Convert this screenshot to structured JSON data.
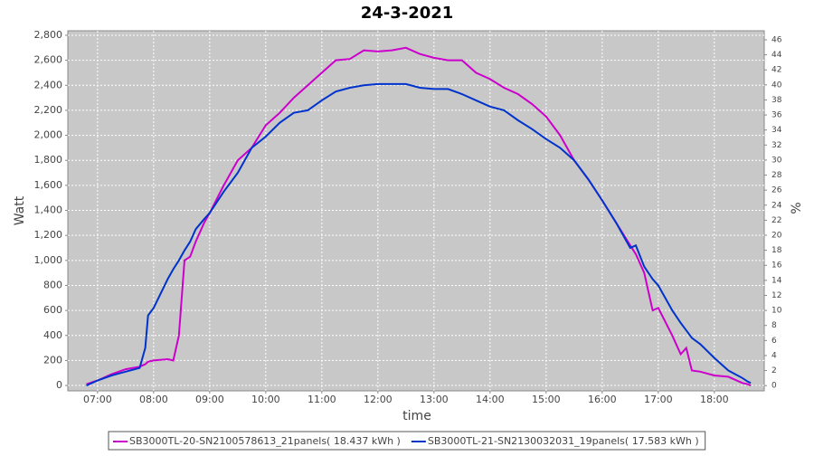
{
  "chart_data": {
    "type": "line",
    "title": "24-3-2021",
    "x_label": "time",
    "y_label": "Watt",
    "y2_label": "%",
    "x": [
      6.8,
      7.0,
      7.25,
      7.5,
      7.75,
      7.85,
      7.9,
      8.0,
      8.25,
      8.35,
      8.45,
      8.55,
      8.65,
      8.75,
      8.9,
      9.0,
      9.25,
      9.5,
      9.75,
      10.0,
      10.25,
      10.5,
      10.75,
      11.0,
      11.25,
      11.5,
      11.75,
      12.0,
      12.25,
      12.5,
      12.75,
      13.0,
      13.25,
      13.5,
      13.75,
      14.0,
      14.25,
      14.5,
      14.75,
      15.0,
      15.25,
      15.5,
      15.75,
      16.0,
      16.25,
      16.5,
      16.6,
      16.75,
      16.9,
      17.0,
      17.25,
      17.4,
      17.5,
      17.6,
      17.75,
      18.0,
      18.25,
      18.5,
      18.6,
      18.65
    ],
    "series": [
      {
        "name": "SB3000TL-20-SN2100578613_21panels( 18.437 kWh )",
        "color": "#cc00cc",
        "values": [
          10,
          40,
          90,
          130,
          150,
          170,
          190,
          200,
          210,
          200,
          400,
          1000,
          1030,
          1150,
          1300,
          1380,
          1600,
          1800,
          1900,
          2080,
          2180,
          2300,
          2400,
          2500,
          2600,
          2610,
          2680,
          2670,
          2680,
          2700,
          2650,
          2620,
          2600,
          2600,
          2500,
          2450,
          2380,
          2330,
          2250,
          2150,
          2000,
          1800,
          1650,
          1480,
          1300,
          1120,
          1050,
          900,
          600,
          620,
          400,
          250,
          300,
          120,
          110,
          80,
          70,
          20,
          10,
          0
        ]
      },
      {
        "name": "SB3000TL-21-SN2130032031_19panels( 17.583 kWh )",
        "color": "#0033cc",
        "values": [
          0,
          40,
          80,
          110,
          140,
          300,
          560,
          620,
          850,
          930,
          1000,
          1080,
          1150,
          1250,
          1330,
          1380,
          1550,
          1700,
          1900,
          1990,
          2100,
          2180,
          2200,
          2280,
          2350,
          2380,
          2400,
          2410,
          2410,
          2410,
          2380,
          2370,
          2370,
          2330,
          2280,
          2230,
          2200,
          2120,
          2050,
          1970,
          1900,
          1800,
          1650,
          1480,
          1300,
          1100,
          1120,
          950,
          850,
          800,
          600,
          500,
          440,
          380,
          330,
          220,
          120,
          60,
          30,
          20
        ]
      }
    ],
    "xlim": [
      6.47,
      18.89
    ],
    "xticks": [
      {
        "value": 7,
        "label": "07:00"
      },
      {
        "value": 8,
        "label": "08:00"
      },
      {
        "value": 9,
        "label": "09:00"
      },
      {
        "value": 10,
        "label": "10:00"
      },
      {
        "value": 11,
        "label": "11:00"
      },
      {
        "value": 12,
        "label": "12:00"
      },
      {
        "value": 13,
        "label": "13:00"
      },
      {
        "value": 14,
        "label": "14:00"
      },
      {
        "value": 15,
        "label": "15:00"
      },
      {
        "value": 16,
        "label": "16:00"
      },
      {
        "value": 17,
        "label": "17:00"
      },
      {
        "value": 18,
        "label": "18:00"
      }
    ],
    "ylim": [
      -43,
      2836
    ],
    "yticks": [
      0,
      200,
      400,
      600,
      800,
      {
        "value": 1000,
        "label": "1,000"
      },
      {
        "value": 1200,
        "label": "1,200"
      },
      {
        "value": 1400,
        "label": "1,400"
      },
      {
        "value": 1600,
        "label": "1,600"
      },
      {
        "value": 1800,
        "label": "1,800"
      },
      {
        "value": 2000,
        "label": "2,000"
      },
      {
        "value": 2200,
        "label": "2,200"
      },
      {
        "value": 2400,
        "label": "2,400"
      },
      {
        "value": 2600,
        "label": "2,600"
      },
      {
        "value": 2800,
        "label": "2,800"
      }
    ],
    "y2lim": [
      -0.7,
      47.2
    ],
    "y2ticks": [
      0,
      2,
      4,
      6,
      8,
      10,
      12,
      14,
      16,
      18,
      20,
      22,
      24,
      26,
      28,
      30,
      32,
      34,
      36,
      38,
      40,
      42,
      44,
      46
    ],
    "grid": true,
    "background": "#c8c8c8",
    "legend": "bottom"
  }
}
